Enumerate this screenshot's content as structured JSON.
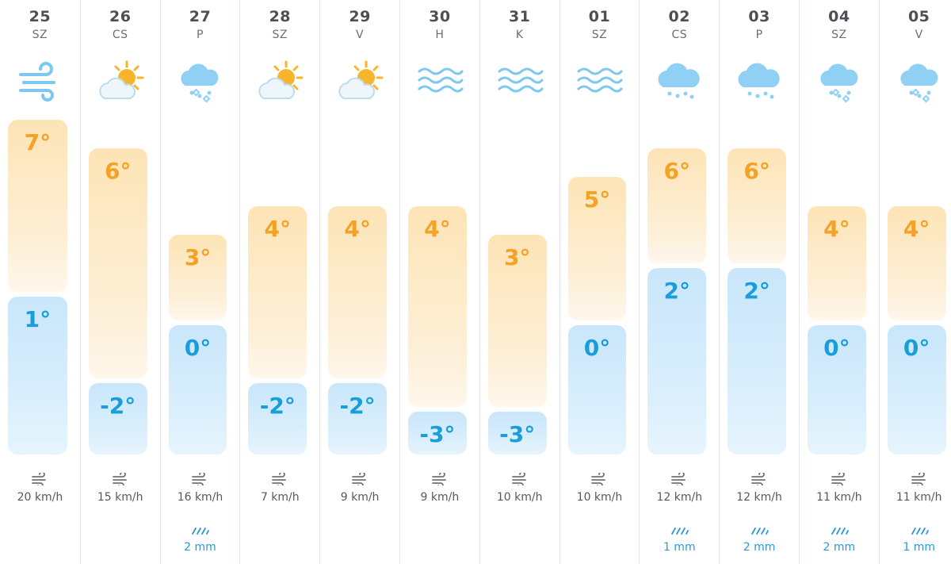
{
  "days": [
    {
      "date": "25",
      "dow": "SZ",
      "icon": "wind-icon",
      "high": "7°",
      "low": "1°",
      "high_c": 7,
      "low_c": 1,
      "wind": "20 km/h",
      "rain": ""
    },
    {
      "date": "26",
      "dow": "CS",
      "icon": "partly-sunny-icon",
      "high": "6°",
      "low": "-2°",
      "high_c": 6,
      "low_c": -2,
      "wind": "15 km/h",
      "rain": ""
    },
    {
      "date": "27",
      "dow": "P",
      "icon": "snow-sleet-icon",
      "high": "3°",
      "low": "0°",
      "high_c": 3,
      "low_c": 0,
      "wind": "16 km/h",
      "rain": "2 mm"
    },
    {
      "date": "28",
      "dow": "SZ",
      "icon": "partly-sunny-icon",
      "high": "4°",
      "low": "-2°",
      "high_c": 4,
      "low_c": -2,
      "wind": "7 km/h",
      "rain": ""
    },
    {
      "date": "29",
      "dow": "V",
      "icon": "partly-sunny-icon",
      "high": "4°",
      "low": "-2°",
      "high_c": 4,
      "low_c": -2,
      "wind": "9 km/h",
      "rain": ""
    },
    {
      "date": "30",
      "dow": "H",
      "icon": "fog-icon",
      "high": "4°",
      "low": "-3°",
      "high_c": 4,
      "low_c": -3,
      "wind": "9 km/h",
      "rain": ""
    },
    {
      "date": "31",
      "dow": "K",
      "icon": "fog-icon",
      "high": "3°",
      "low": "-3°",
      "high_c": 3,
      "low_c": -3,
      "wind": "10 km/h",
      "rain": ""
    },
    {
      "date": "01",
      "dow": "SZ",
      "icon": "fog-icon",
      "high": "5°",
      "low": "0°",
      "high_c": 5,
      "low_c": 0,
      "wind": "10 km/h",
      "rain": ""
    },
    {
      "date": "02",
      "dow": "CS",
      "icon": "rain-icon",
      "high": "6°",
      "low": "2°",
      "high_c": 6,
      "low_c": 2,
      "wind": "12 km/h",
      "rain": "1 mm"
    },
    {
      "date": "03",
      "dow": "P",
      "icon": "rain-icon",
      "high": "6°",
      "low": "2°",
      "high_c": 6,
      "low_c": 2,
      "wind": "12 km/h",
      "rain": "2 mm"
    },
    {
      "date": "04",
      "dow": "SZ",
      "icon": "snow-sleet-icon",
      "high": "4°",
      "low": "0°",
      "high_c": 4,
      "low_c": 0,
      "wind": "11 km/h",
      "rain": "2 mm"
    },
    {
      "date": "05",
      "dow": "V",
      "icon": "snow-sleet-icon",
      "high": "4°",
      "low": "0°",
      "high_c": 4,
      "low_c": 0,
      "wind": "11 km/h",
      "rain": "1 mm"
    }
  ],
  "colors": {
    "high_text": "#f4a124",
    "low_text": "#1a9ed9",
    "high_bar": "#fde4b6",
    "low_bar": "#c9e6fb",
    "icon_blue": "#7cc8f0",
    "sun": "#f7b52c"
  }
}
